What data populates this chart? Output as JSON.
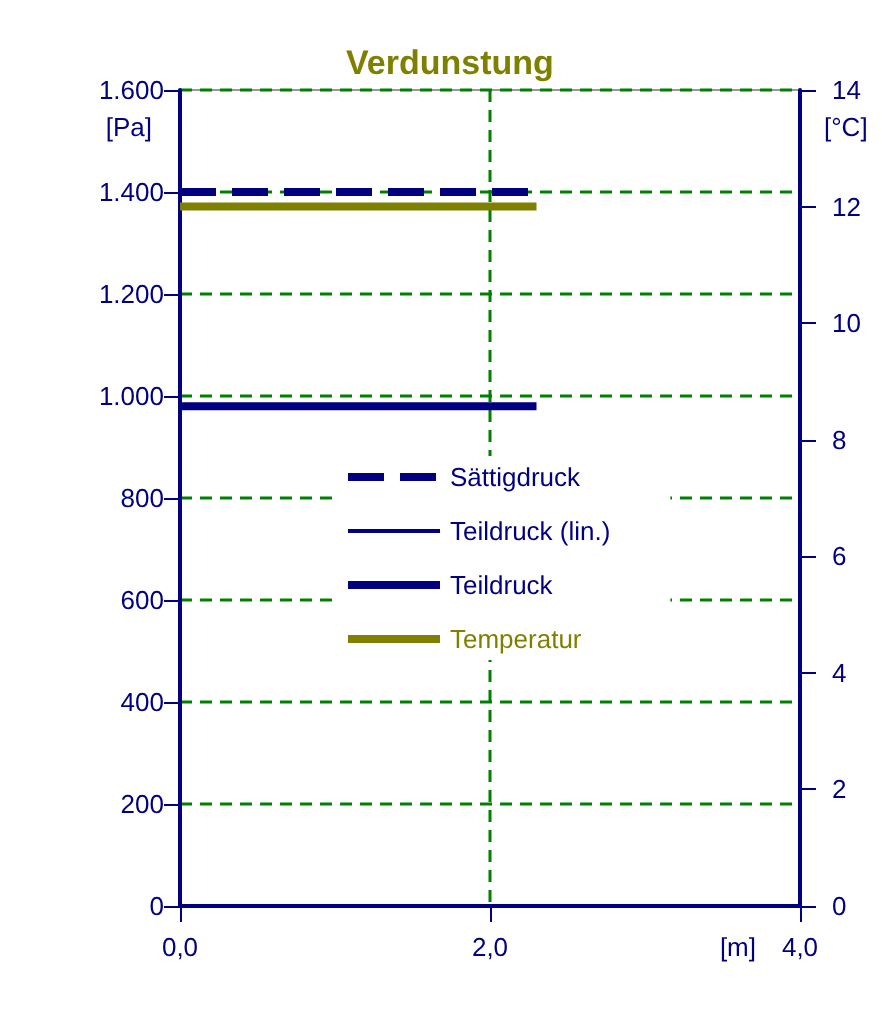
{
  "chart_data": {
    "type": "line",
    "title": "Verdunstung",
    "xlabel": "[m]",
    "ylabel": "[Pa]",
    "y2label": "[°C]",
    "x": [
      0,
      2.3
    ],
    "series": [
      {
        "name": "Sättigdruck",
        "color": "#000080",
        "line_style": "dashed",
        "values": [
          1400,
          1400
        ]
      },
      {
        "name": "Teildruck (lin.)",
        "color": "#000080",
        "values": [
          null,
          null
        ]
      },
      {
        "name": "Teildruck",
        "color": "#000080",
        "values": [
          980,
          980
        ]
      },
      {
        "name": "Temperatur",
        "color": "#808000",
        "axis": "y2",
        "values": [
          12,
          12
        ]
      }
    ],
    "xlim": [
      0,
      4
    ],
    "xticks": [
      {
        "value": 0,
        "label": "0,0"
      },
      {
        "value": 2,
        "label": "2,0"
      },
      {
        "value": 4,
        "label": "4,0"
      }
    ],
    "ylim": [
      0,
      1600
    ],
    "yticks": [
      0,
      200,
      400,
      600,
      800,
      {
        "value": 1000,
        "label": "1.000"
      },
      {
        "value": 1200,
        "label": "1.200"
      },
      {
        "value": 1400,
        "label": "1.400"
      },
      {
        "value": 1600,
        "label": "1.600"
      }
    ],
    "y2lim": [
      0,
      14
    ],
    "y2ticks": [
      0,
      2,
      4,
      6,
      8,
      10,
      12,
      14
    ],
    "grid": true,
    "legend": "center",
    "marker": "none",
    "line_style": "solid"
  }
}
